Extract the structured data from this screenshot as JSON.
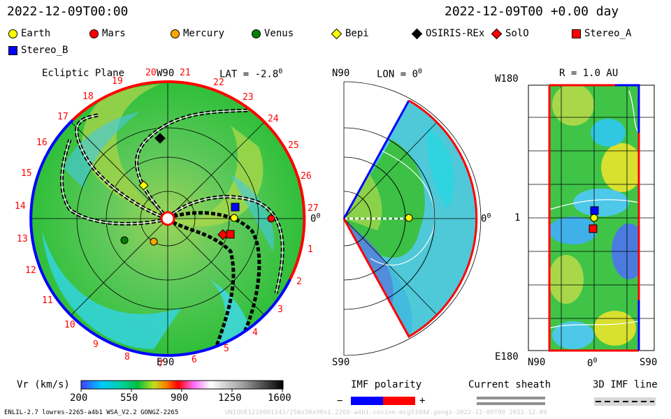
{
  "header": {
    "time_left": "2022-12-09T00:00",
    "time_right": "2022-12-09T00 +0.00 day"
  },
  "legend": [
    {
      "id": "earth",
      "label": "Earth",
      "shape": "circle",
      "color": "#ffff00"
    },
    {
      "id": "mars",
      "label": "Mars",
      "shape": "circle",
      "color": "#ff0000"
    },
    {
      "id": "mercury",
      "label": "Mercury",
      "shape": "circle",
      "color": "#ffa500"
    },
    {
      "id": "venus",
      "label": "Venus",
      "shape": "circle",
      "color": "#008000"
    },
    {
      "id": "bepi",
      "label": "Bepi",
      "shape": "diamond",
      "color": "#ffff00"
    },
    {
      "id": "osiris",
      "label": "OSIRIS-REx",
      "shape": "diamond",
      "color": "#000000"
    },
    {
      "id": "solo",
      "label": "SolO",
      "shape": "diamond",
      "color": "#ff0000"
    },
    {
      "id": "stereo_a",
      "label": "Stereo_A",
      "shape": "square",
      "color": "#ff0000"
    },
    {
      "id": "stereo_b",
      "label": "Stereo_B",
      "shape": "square",
      "color": "#0000ff"
    }
  ],
  "ecliptic": {
    "title": "Ecliptic Plane",
    "top_label": "W90",
    "lat_label": "LAT = -2.8",
    "lat_sup": "0",
    "right_label": "0",
    "right_sup": "0",
    "bottom_label": "E90",
    "carrington": [
      "1",
      "2",
      "3",
      "4",
      "5",
      "6",
      "7",
      "8",
      "9",
      "10",
      "11",
      "12",
      "13",
      "14",
      "15",
      "16",
      "17",
      "18",
      "19",
      "20",
      "21",
      "22",
      "23",
      "24",
      "25",
      "26",
      "27"
    ]
  },
  "meridional": {
    "lon_label": "LON = 0",
    "lon_sup": "0",
    "top_label": "N90",
    "bottom_label": "S90",
    "right_label": "0",
    "right_sup": "0"
  },
  "map_panel": {
    "r_label": "R = 1.0 AU",
    "top_left": "W180",
    "mid_left": "1",
    "bottom_left": "E180",
    "x_left": "N90",
    "x_mid": "0",
    "x_mid_sup": "0",
    "x_right": "S90"
  },
  "colorbar": {
    "label": "Vr (km/s)",
    "ticks": [
      "200",
      "550",
      "900",
      "1250",
      "1600"
    ]
  },
  "imf_polarity": {
    "label": "IMF polarity",
    "minus": "−",
    "plus": "+"
  },
  "current_sheath": {
    "label": "Current sheath"
  },
  "imf_line": {
    "label": "3D IMF line"
  },
  "footer": {
    "left": "ENLIL-2.7 lowres-2265-a4b1 WSA_V2.2 GONGZ-2265",
    "right": "UNIQUE1210001143/256x30x90x1.2265-a4b1-cosine-mcg53d4d.gongz-2022-12-09T00 2022-12-09"
  },
  "colors": {
    "red": "#ff0000",
    "blue": "#0000ff",
    "green": "#22b14c"
  }
}
